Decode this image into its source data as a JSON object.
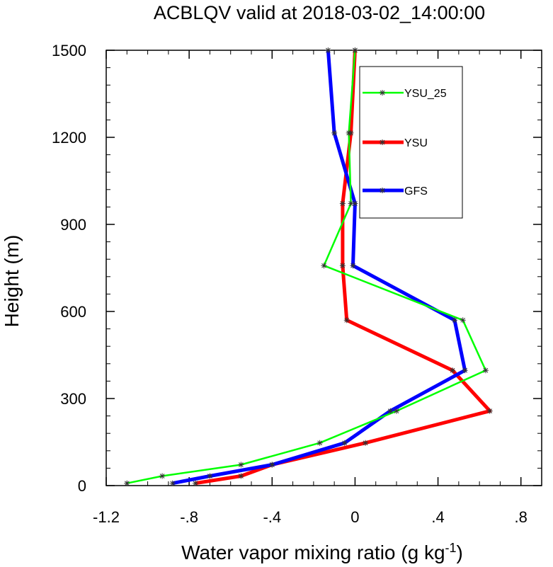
{
  "chart_data": {
    "type": "line",
    "title": "ACBLQV valid at 2018-03-02_14:00:00",
    "xlabel": "Water vapor mixing ratio (g kg",
    "xlabel_sup": "-1",
    "xlabel_end": ")",
    "ylabel": "Height (m)",
    "xlim": [
      -1.2,
      0.9
    ],
    "ylim": [
      0,
      1500
    ],
    "xticks": [
      {
        "value": -1.2,
        "label": "-1.2"
      },
      {
        "value": -0.8,
        "label": "-.8"
      },
      {
        "value": -0.4,
        "label": "-.4"
      },
      {
        "value": 0,
        "label": "0"
      },
      {
        "value": 0.4,
        "label": ".4"
      },
      {
        "value": 0.8,
        "label": ".8"
      }
    ],
    "yticks": [
      {
        "value": 0,
        "label": "0"
      },
      {
        "value": 300,
        "label": "300"
      },
      {
        "value": 600,
        "label": "600"
      },
      {
        "value": 900,
        "label": "900"
      },
      {
        "value": 1200,
        "label": "1200"
      },
      {
        "value": 1500,
        "label": "1500"
      }
    ],
    "legend_placement": "top-right",
    "series": [
      {
        "name": "YSU_25",
        "color": "#00ff00",
        "x": [
          -1.1,
          -0.93,
          -0.55,
          -0.17,
          0.2,
          0.63,
          0.52,
          -0.15,
          -0.02,
          -0.03,
          0.0
        ],
        "y": [
          8,
          33,
          72,
          147,
          257,
          397,
          570,
          758,
          972,
          1215,
          1500
        ]
      },
      {
        "name": "YSU",
        "color": "#ff0000",
        "x": [
          -0.77,
          -0.55,
          -0.4,
          0.05,
          0.65,
          0.47,
          -0.04,
          -0.06,
          -0.06,
          -0.02,
          0.0
        ],
        "y": [
          8,
          33,
          72,
          147,
          257,
          397,
          570,
          758,
          972,
          1215,
          1500
        ]
      },
      {
        "name": "GFS",
        "color": "#0000ff",
        "x": [
          -0.88,
          -0.7,
          -0.4,
          -0.05,
          0.17,
          0.53,
          0.48,
          -0.01,
          0.0,
          -0.1,
          -0.13
        ],
        "y": [
          8,
          33,
          72,
          147,
          257,
          397,
          570,
          758,
          972,
          1215,
          1500
        ]
      }
    ]
  }
}
